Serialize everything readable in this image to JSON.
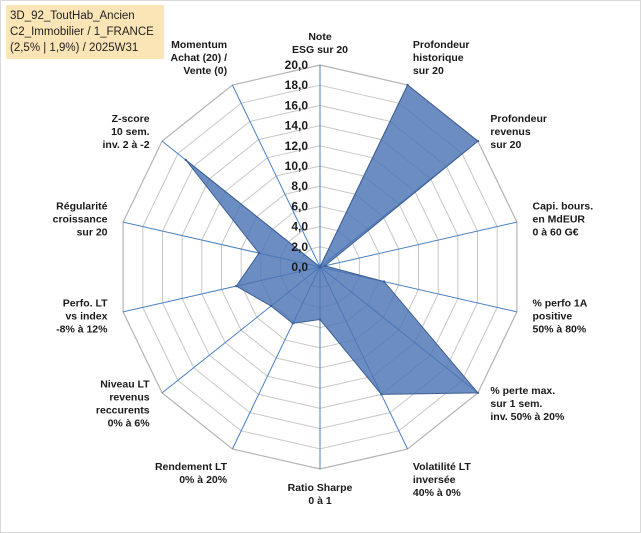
{
  "title": {
    "line1": "3D_92_ToutHab_Ancien",
    "line2": "C2_Immobilier / 1_FRANCE",
    "line3": "(2,5% | 1,9%) / 2025W31"
  },
  "chart_data": {
    "type": "radar",
    "rmax": 20,
    "ticks": [
      "0,0",
      "2,0",
      "4,0",
      "6,0",
      "8,0",
      "10,0",
      "12,0",
      "14,0",
      "16,0",
      "18,0",
      "20,0"
    ],
    "axes": [
      {
        "label": [
          "Note",
          "ESG sur 20"
        ]
      },
      {
        "label": [
          "Profondeur",
          "historique",
          "sur 20"
        ]
      },
      {
        "label": [
          "Profondeur",
          "revenus",
          "sur 20"
        ]
      },
      {
        "label": [
          "Capi. bours.",
          "en MdEUR",
          "0 à 60 G€"
        ]
      },
      {
        "label": [
          "% perfo 1A",
          "positive",
          "50% à 80%"
        ]
      },
      {
        "label": [
          "% perte max.",
          "sur 1 sem.",
          "inv. 50% à 20%"
        ]
      },
      {
        "label": [
          "Volatilité LT",
          "inversée",
          "40% à 0%"
        ]
      },
      {
        "label": [
          "Ratio Sharpe",
          "0 à 1"
        ]
      },
      {
        "label": [
          "Rendement LT",
          "0% à 20%"
        ]
      },
      {
        "label": [
          "Niveau LT",
          "revenus",
          "reccurents",
          "0% à 6%"
        ]
      },
      {
        "label": [
          "Perfo. LT",
          "vs index",
          "-8% à 12%"
        ]
      },
      {
        "label": [
          "Régularité",
          "croissance",
          "sur 20"
        ]
      },
      {
        "label": [
          "Z-score",
          "10 sem.",
          "inv. 2 à -2"
        ]
      },
      {
        "label": [
          "Momentum",
          "Achat (20) /",
          "Vente (0)"
        ]
      }
    ],
    "series": [
      {
        "values": [
          0,
          20,
          20,
          0.5,
          6.5,
          20,
          14,
          5.2,
          6.2,
          6.2,
          8.5,
          6.2,
          17,
          0
        ],
        "color": "#4a74b5"
      }
    ],
    "grid": true
  }
}
